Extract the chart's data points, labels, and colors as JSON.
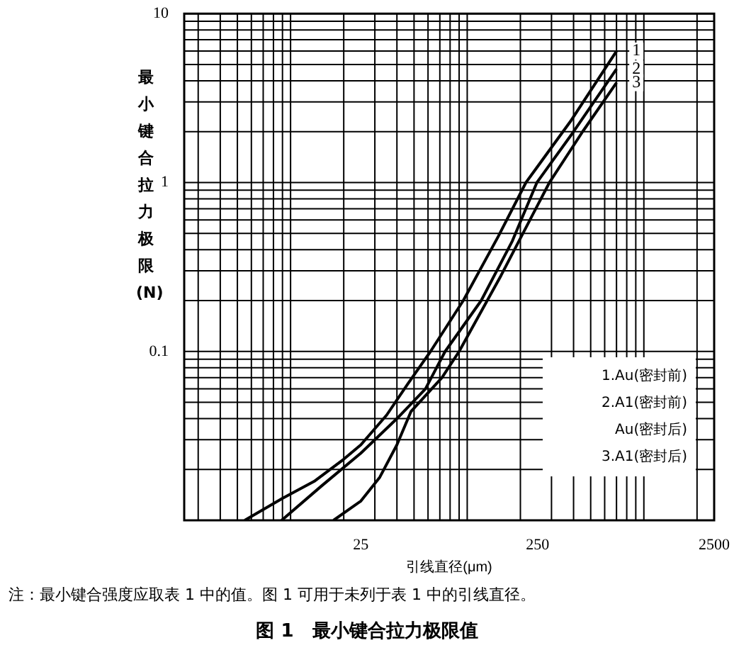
{
  "chart_data": {
    "type": "line",
    "title": "图 1　最小键合拉力极限值",
    "xlabel": "引线直径(μm)",
    "ylabel": "最小键合拉力极限(N)",
    "log": "xy",
    "xlim": [
      2.5,
      2500
    ],
    "xticks": [
      25,
      250,
      2500
    ],
    "ylim": [
      0.01,
      10
    ],
    "yticks": [
      0.1,
      1,
      10
    ],
    "grid": true,
    "marker": "none",
    "line_style": "solid",
    "series": [
      {
        "name": "1",
        "color": "#000000",
        "x": [
          5.5,
          9,
          13.6,
          20,
          25,
          35,
          46,
          62,
          95,
          150,
          215,
          384,
          700
        ],
        "values": [
          0.01,
          0.0135,
          0.017,
          0.023,
          0.028,
          0.042,
          0.064,
          0.1,
          0.2,
          0.48,
          1.0,
          2.3,
          6.0
        ]
      },
      {
        "name": "2",
        "color": "#000000",
        "x": [
          8.9,
          15,
          25,
          40,
          58,
          75,
          120,
          180,
          248,
          400,
          700
        ],
        "values": [
          0.01,
          0.016,
          0.025,
          0.04,
          0.06,
          0.1,
          0.2,
          0.45,
          1.0,
          2.0,
          4.7
        ]
      },
      {
        "name": "3",
        "color": "#000000",
        "x": [
          17.5,
          25,
          32,
          40,
          48,
          72,
          90,
          155,
          292,
          450,
          700
        ],
        "values": [
          0.01,
          0.013,
          0.018,
          0.028,
          0.044,
          0.07,
          0.1,
          0.28,
          1.0,
          2.0,
          3.9
        ]
      }
    ],
    "annotations": [
      "1.Au(密封前)",
      "2.A1(密封前)\nAu(密封后)",
      "3.A1(密封后)",
      "注：最小键合强度应取表 1 中的值。图 1 可用于未列于表 1 中的引线直径。"
    ]
  }
}
